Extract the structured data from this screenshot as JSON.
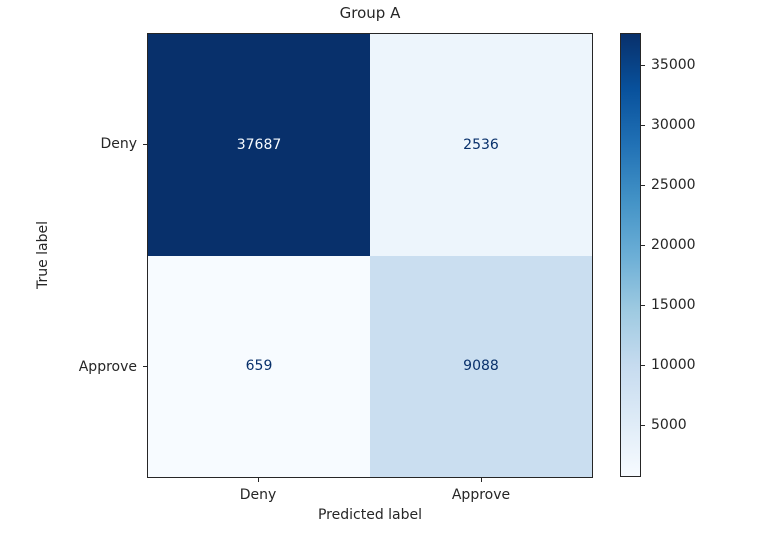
{
  "figure": {
    "background": "#ffffff",
    "text_color": "#262626"
  },
  "chart_data": {
    "type": "heatmap",
    "title": "Group A",
    "xlabel": "Predicted label",
    "ylabel": "True label",
    "x_categories": [
      "Deny",
      "Approve"
    ],
    "y_categories": [
      "Deny",
      "Approve"
    ],
    "matrix": [
      [
        37687,
        2536
      ],
      [
        659,
        9088
      ]
    ],
    "vmin": 659,
    "vmax": 37687,
    "colormap": "Blues",
    "grid": false,
    "legend_position": "right-colorbar",
    "colorbar_ticks": [
      5000,
      10000,
      15000,
      20000,
      25000,
      30000,
      35000
    ],
    "colormap_stops": [
      "#f7fbff",
      "#deebf7",
      "#c6dbef",
      "#9ecae1",
      "#6baed6",
      "#4292c6",
      "#2171b5",
      "#08519c",
      "#08306b"
    ],
    "cell_colors": [
      [
        "#08306b",
        "#edf5fc"
      ],
      [
        "#f7fbff",
        "#cadef0"
      ]
    ],
    "cell_text_colors": [
      [
        "#f7fbff",
        "#08306b"
      ],
      [
        "#08306b",
        "#08306b"
      ]
    ]
  }
}
